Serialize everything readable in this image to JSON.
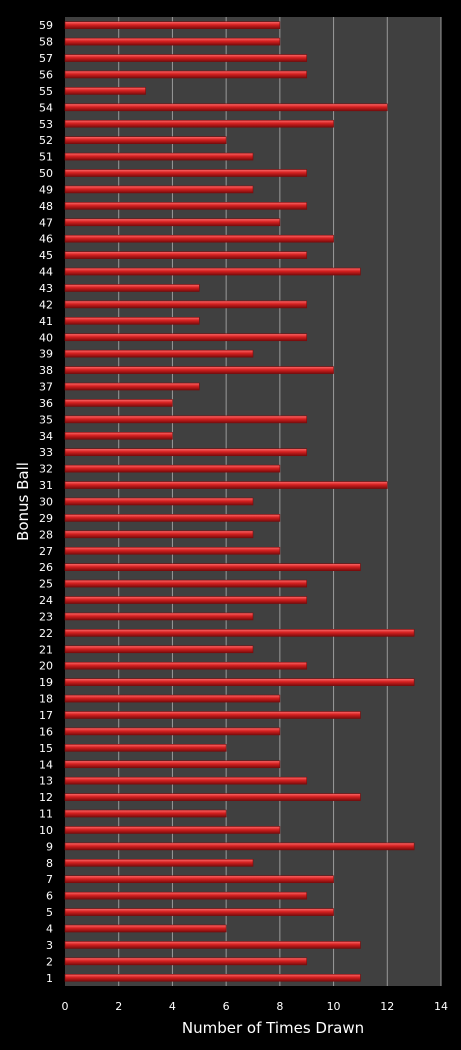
{
  "chart_data": {
    "type": "bar",
    "orientation": "horizontal",
    "title": "",
    "xlabel": "Number of Times Drawn",
    "ylabel": "Bonus Ball",
    "xlim": [
      0,
      14
    ],
    "xticks": [
      0,
      2,
      4,
      6,
      8,
      10,
      12,
      14
    ],
    "grid": true,
    "categories": [
      "1",
      "2",
      "3",
      "4",
      "5",
      "6",
      "7",
      "8",
      "9",
      "10",
      "11",
      "12",
      "13",
      "14",
      "15",
      "16",
      "17",
      "18",
      "19",
      "20",
      "21",
      "22",
      "23",
      "24",
      "25",
      "26",
      "27",
      "28",
      "29",
      "30",
      "31",
      "32",
      "33",
      "34",
      "35",
      "36",
      "37",
      "38",
      "39",
      "40",
      "41",
      "42",
      "43",
      "44",
      "45",
      "46",
      "47",
      "48",
      "49",
      "50",
      "51",
      "52",
      "53",
      "54",
      "55",
      "56",
      "57",
      "58",
      "59"
    ],
    "values": [
      11,
      9,
      11,
      6,
      10,
      9,
      10,
      7,
      13,
      8,
      6,
      11,
      9,
      8,
      6,
      8,
      11,
      8,
      13,
      9,
      7,
      13,
      7,
      9,
      9,
      11,
      8,
      7,
      8,
      7,
      12,
      8,
      9,
      4,
      9,
      4,
      5,
      10,
      7,
      9,
      5,
      9,
      5,
      11,
      9,
      10,
      8,
      9,
      7,
      9,
      7,
      6,
      10,
      12,
      3,
      9,
      9,
      8,
      8
    ],
    "colors": {
      "background": "#000000",
      "plot_area": "#404040",
      "gridline": "#9a9a9a",
      "bar": "#d42020",
      "bar_highlight": "#ff6a6a",
      "bar_shadow": "#7a0c0c",
      "text": "#ffffff"
    }
  }
}
